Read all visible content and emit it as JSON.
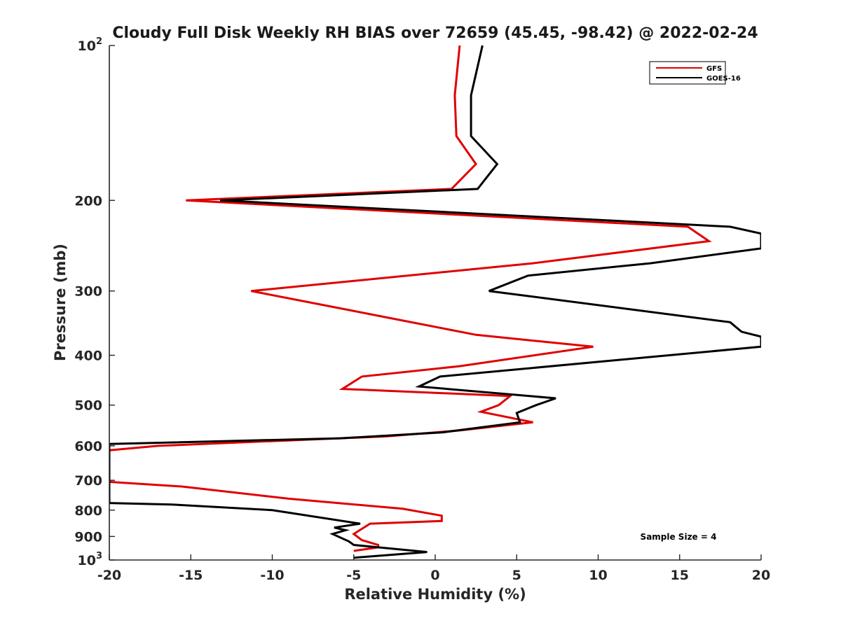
{
  "chart_data": {
    "type": "line",
    "title": "Cloudy Full Disk Weekly RH BIAS over 72659 (45.45, -98.42) @ 2022-02-24",
    "xlabel": "Relative Humidity (%)",
    "ylabel": "Pressure (mb)",
    "xlim": [
      -20,
      20
    ],
    "ylim": [
      100,
      1000
    ],
    "y_scale": "log",
    "y_reversed": true,
    "xticks": [
      "-20",
      "-15",
      "-10",
      "-5",
      "0",
      "5",
      "10",
      "15",
      "20"
    ],
    "xtick_values": [
      -20,
      -15,
      -10,
      -5,
      0,
      5,
      10,
      15,
      20
    ],
    "yticks": [
      {
        "value": 100,
        "label": "10",
        "sup": "2"
      },
      {
        "value": 200,
        "label": "200",
        "sup": ""
      },
      {
        "value": 300,
        "label": "300",
        "sup": ""
      },
      {
        "value": 400,
        "label": "400",
        "sup": ""
      },
      {
        "value": 500,
        "label": "500",
        "sup": ""
      },
      {
        "value": 600,
        "label": "600",
        "sup": ""
      },
      {
        "value": 700,
        "label": "700",
        "sup": ""
      },
      {
        "value": 800,
        "label": "800",
        "sup": ""
      },
      {
        "value": 900,
        "label": "900",
        "sup": ""
      },
      {
        "value": 1000,
        "label": "10",
        "sup": "3"
      }
    ],
    "grid": false,
    "legend_position": "top-right",
    "annotation": "Sample Size = 4",
    "series": [
      {
        "name": "GFS",
        "color": "#e00000",
        "points": [
          [
            1.5,
            100
          ],
          [
            1.2,
            125
          ],
          [
            1.3,
            150
          ],
          [
            2.5,
            170
          ],
          [
            1.0,
            190
          ],
          [
            -15.3,
            200
          ],
          [
            15.5,
            225
          ],
          [
            16.8,
            240
          ],
          [
            6.0,
            265
          ],
          [
            -11.3,
            300
          ],
          [
            -2.5,
            340
          ],
          [
            2.5,
            365
          ],
          [
            9.7,
            385
          ],
          [
            1.5,
            420
          ],
          [
            -4.5,
            440
          ],
          [
            -5.7,
            465
          ],
          [
            4.6,
            480
          ],
          [
            3.9,
            500
          ],
          [
            2.8,
            515
          ],
          [
            6.0,
            540
          ],
          [
            1.5,
            560
          ],
          [
            -3.0,
            575
          ],
          [
            -17.0,
            600
          ],
          [
            -20.0,
            612
          ],
          [
            -20.0,
            705
          ],
          [
            -15.5,
            720
          ],
          [
            -9.0,
            760
          ],
          [
            -2.0,
            795
          ],
          [
            0.4,
            820
          ],
          [
            0.4,
            840
          ],
          [
            -4.0,
            850
          ],
          [
            -5.0,
            890
          ],
          [
            -4.5,
            915
          ],
          [
            -3.5,
            935
          ],
          [
            -3.5,
            945
          ],
          [
            -5.0,
            960
          ]
        ]
      },
      {
        "name": "GOES-16",
        "color": "#000000",
        "points": [
          [
            2.9,
            100
          ],
          [
            2.2,
            125
          ],
          [
            2.2,
            150
          ],
          [
            3.8,
            170
          ],
          [
            2.6,
            190
          ],
          [
            -13.2,
            200
          ],
          [
            18.1,
            225
          ],
          [
            20.0,
            232
          ],
          [
            20.0,
            248
          ],
          [
            13.2,
            265
          ],
          [
            5.7,
            280
          ],
          [
            3.3,
            300
          ],
          [
            18.1,
            345
          ],
          [
            18.8,
            360
          ],
          [
            20.0,
            368
          ],
          [
            20.0,
            385
          ],
          [
            0.3,
            440
          ],
          [
            -1.0,
            460
          ],
          [
            7.4,
            485
          ],
          [
            6.2,
            500
          ],
          [
            5.0,
            518
          ],
          [
            5.2,
            540
          ],
          [
            0.4,
            565
          ],
          [
            -5.8,
            580
          ],
          [
            -20.0,
            595
          ],
          [
            -20.0,
            775
          ],
          [
            -16.2,
            780
          ],
          [
            -10.0,
            800
          ],
          [
            -4.6,
            850
          ],
          [
            -6.2,
            865
          ],
          [
            -5.5,
            875
          ],
          [
            -6.3,
            890
          ],
          [
            -5.8,
            905
          ],
          [
            -5.3,
            920
          ],
          [
            -5.0,
            935
          ],
          [
            -3.5,
            945
          ],
          [
            -0.5,
            965
          ],
          [
            -5.0,
            990
          ]
        ]
      }
    ]
  }
}
